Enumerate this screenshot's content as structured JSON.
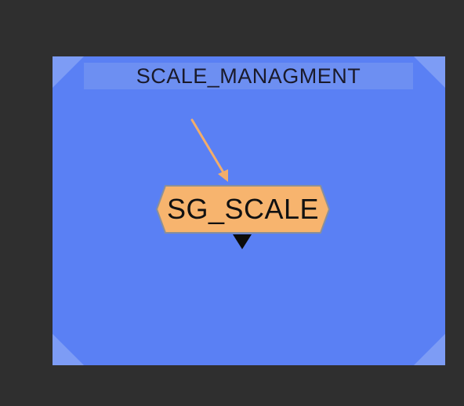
{
  "backdrop": {
    "title": "SCALE_MANAGMENT",
    "color": "#5a80f4"
  },
  "node": {
    "label": "SG_SCALE",
    "color": "#f7b46e",
    "input_arrow_color": "#f2ad6a"
  },
  "canvas": {
    "background": "#2f2f2f"
  }
}
